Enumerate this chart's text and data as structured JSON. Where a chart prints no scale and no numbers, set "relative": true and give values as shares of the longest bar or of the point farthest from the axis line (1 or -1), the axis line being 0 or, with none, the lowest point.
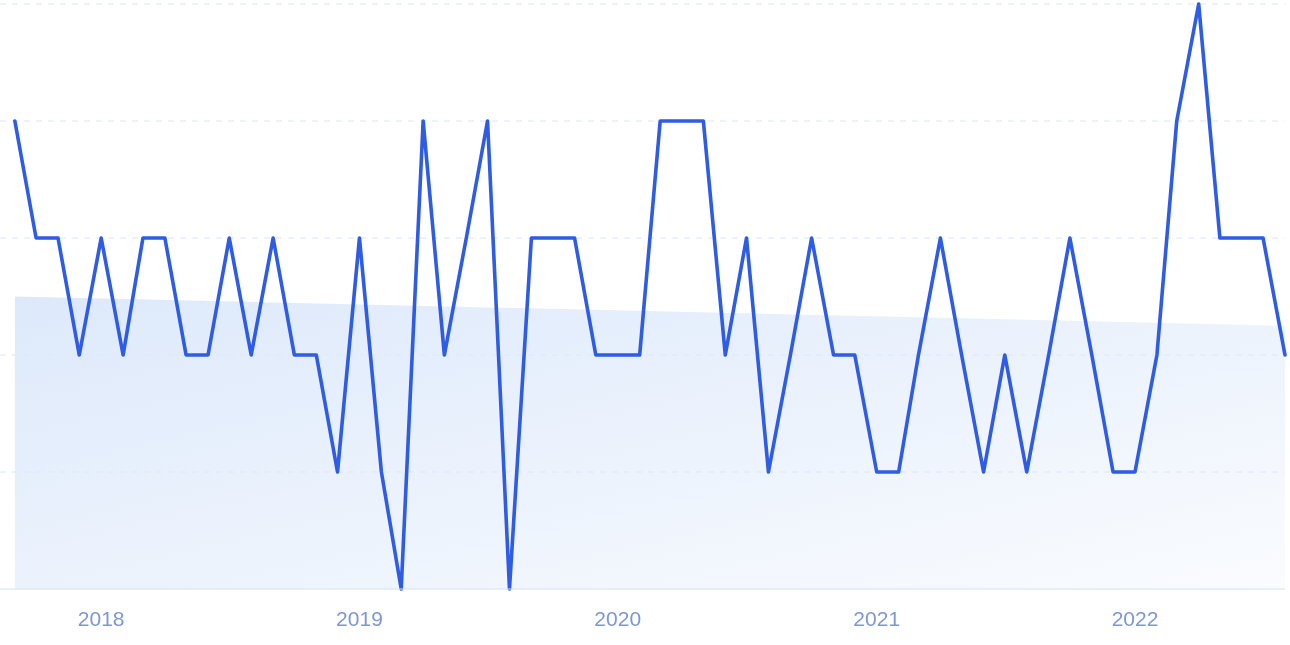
{
  "chart_data": {
    "type": "line",
    "relative": true,
    "grid": "y",
    "xlim": [
      "2017-08-11",
      "2022-08-01"
    ],
    "xticks": [
      "2018",
      "2019",
      "2020",
      "2021",
      "2022"
    ],
    "series": [
      {
        "type": "area",
        "color": "#dde9fb",
        "x": [
          "2017-09",
          "2022-08"
        ],
        "values": [
          0.5,
          0.45
        ]
      },
      {
        "color": "#2e5ce5",
        "x": [
          "2017-09",
          "2017-10",
          "2017-11",
          "2017-12",
          "2018-01",
          "2018-02",
          "2018-03",
          "2018-04",
          "2018-05",
          "2018-06",
          "2018-07",
          "2018-08",
          "2018-09",
          "2018-10",
          "2018-11",
          "2018-12",
          "2019-01",
          "2019-02",
          "2019-03",
          "2019-04",
          "2019-05",
          "2019-06",
          "2019-07",
          "2019-08",
          "2019-09",
          "2019-10",
          "2019-11",
          "2019-12",
          "2020-01",
          "2020-02",
          "2020-03",
          "2020-04",
          "2020-05",
          "2020-06",
          "2020-07",
          "2020-08",
          "2020-09",
          "2020-10",
          "2020-11",
          "2020-12",
          "2021-01",
          "2021-02",
          "2021-03",
          "2021-04",
          "2021-05",
          "2021-06",
          "2021-07",
          "2021-08",
          "2021-09",
          "2021-10",
          "2021-11",
          "2021-12",
          "2022-01",
          "2022-02",
          "2022-03",
          "2022-04",
          "2022-05",
          "2022-06",
          "2022-07",
          "2022-08"
        ],
        "values": [
          0.8,
          0.6,
          0.6,
          0.4,
          0.6,
          0.4,
          0.6,
          0.6,
          0.4,
          0.4,
          0.6,
          0.4,
          0.6,
          0.4,
          0.4,
          0.2,
          0.6,
          0.2,
          0,
          0.8,
          0.4,
          0.6,
          0.8,
          0,
          0.6,
          0.6,
          0.6,
          0.4,
          0.4,
          0.4,
          0.8,
          0.8,
          0.8,
          0.4,
          0.6,
          0.2,
          0.4,
          0.6,
          0.4,
          0.4,
          0.2,
          0.2,
          0.4,
          0.6,
          0.4,
          0.2,
          0.4,
          0.2,
          0.4,
          0.6,
          0.4,
          0.2,
          0.2,
          0.4,
          0.8,
          1,
          0.6,
          0.6,
          0.6,
          0.4
        ]
      }
    ]
  }
}
